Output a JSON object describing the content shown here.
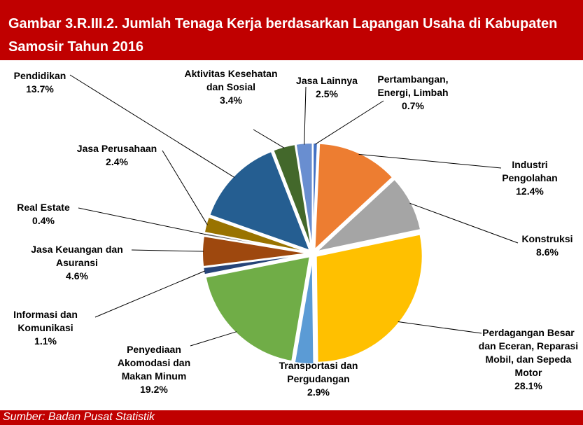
{
  "chart_data": {
    "type": "pie",
    "title": "Gambar 3.R.III.2. Jumlah Tenaga Kerja berdasarkan Lapangan Usaha di Kabupaten Samosir Tahun 2016",
    "source": "Sumber: Badan Pusat Statistik",
    "categories": [
      "Pertambangan, Energi, Limbah",
      "Industri Pengolahan",
      "Konstruksi",
      "Perdagangan Besar dan Eceran, Reparasi Mobil, dan Sepeda Motor",
      "Transportasi dan Pergudangan",
      "Penyediaan Akomodasi dan Makan Minum",
      "Informasi dan Komunikasi",
      "Jasa Keuangan dan Asuransi",
      "Real Estate",
      "Jasa Perusahaan",
      "Pendidikan",
      "Aktivitas Kesehatan dan Sosial",
      "Jasa Lainnya"
    ],
    "values": [
      0.7,
      12.4,
      8.6,
      28.1,
      2.9,
      19.2,
      1.1,
      4.6,
      0.4,
      2.4,
      13.7,
      3.4,
      2.5
    ],
    "value_labels": [
      "0.7%",
      "12.4%",
      "8.6%",
      "28.1%",
      "2.9%",
      "19.2%",
      "1.1%",
      "4.6%",
      "0.4%",
      "2.4%",
      "13.7%",
      "3.4%",
      "2.5%"
    ],
    "colors": [
      "#4472c4",
      "#ed7d31",
      "#a5a5a5",
      "#ffc000",
      "#5b9bd5",
      "#70ad47",
      "#264478",
      "#9e480e",
      "#636363",
      "#997300",
      "#255e91",
      "#43682b",
      "#698ed0"
    ]
  }
}
